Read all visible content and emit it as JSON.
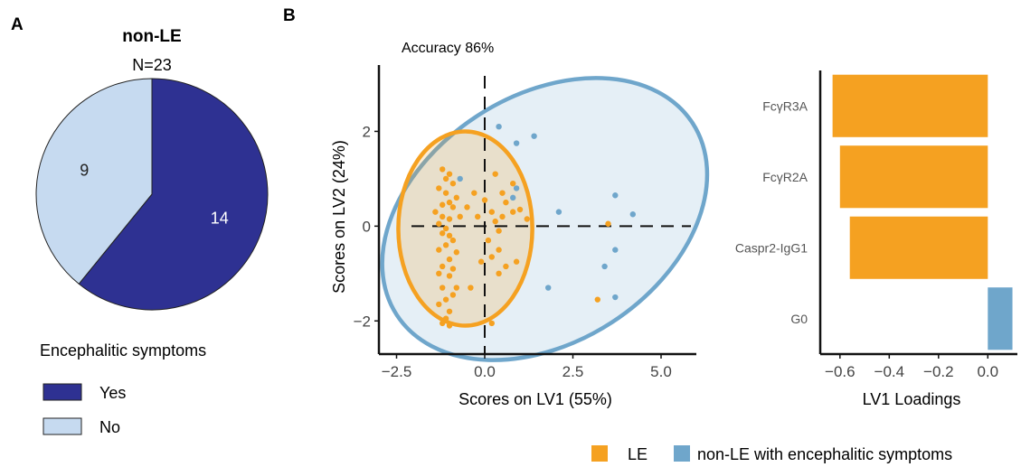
{
  "panels": {
    "a_letter": "A",
    "b_letter": "B"
  },
  "chart_data": [
    {
      "type": "pie",
      "title": "non-LE",
      "subtitle": "N=23",
      "categories": [
        "Yes",
        "No"
      ],
      "values": [
        14,
        9
      ],
      "colors": [
        "#2e3192",
        "#c6daf0"
      ],
      "legend": {
        "title": "Encephalitic symptoms",
        "items": [
          "Yes",
          "No"
        ],
        "position": "bottom"
      }
    },
    {
      "type": "scatter",
      "annotation": "Accuracy 86%",
      "xlabel": "Scores on LV1 (55%)",
      "ylabel": "Scores on LV2 (24%)",
      "xlim": [
        -3.0,
        6.0
      ],
      "ylim": [
        -2.7,
        3.4
      ],
      "xticks": [
        -2.5,
        0.0,
        2.5,
        5.0
      ],
      "xtick_labels": [
        "−2.5",
        "0.0",
        "2.5",
        "5.0"
      ],
      "yticks": [
        -2,
        0,
        2
      ],
      "ytick_labels": [
        "−2",
        "0",
        "2"
      ],
      "grid": false,
      "reference_lines": {
        "x": 0,
        "y": 0,
        "style": "dashed"
      },
      "series": [
        {
          "name": "LE",
          "color": "#f5a121",
          "ellipse": {
            "center": [
              -0.55,
              -0.05
            ],
            "rx": 1.9,
            "ry": 2.05,
            "angle": 0
          },
          "points": [
            [
              -1.2,
              1.2
            ],
            [
              -1.0,
              1.1
            ],
            [
              -1.1,
              1.0
            ],
            [
              -0.9,
              0.9
            ],
            [
              -1.3,
              0.8
            ],
            [
              -1.1,
              0.7
            ],
            [
              -0.8,
              0.6
            ],
            [
              -1.0,
              0.5
            ],
            [
              -1.2,
              0.45
            ],
            [
              -0.9,
              0.4
            ],
            [
              -1.4,
              0.3
            ],
            [
              -1.2,
              0.2
            ],
            [
              -1.0,
              0.15
            ],
            [
              -0.7,
              0.2
            ],
            [
              -1.3,
              0.05
            ],
            [
              -1.1,
              -0.05
            ],
            [
              -1.2,
              -0.15
            ],
            [
              -1.0,
              -0.2
            ],
            [
              -0.9,
              -0.3
            ],
            [
              -1.1,
              -0.4
            ],
            [
              -1.3,
              -0.5
            ],
            [
              -0.8,
              -0.55
            ],
            [
              -1.0,
              -0.7
            ],
            [
              -1.2,
              -0.85
            ],
            [
              -0.9,
              -0.9
            ],
            [
              -1.3,
              -1.0
            ],
            [
              -1.0,
              -1.05
            ],
            [
              -1.2,
              -1.3
            ],
            [
              -0.8,
              -1.3
            ],
            [
              -1.1,
              -1.55
            ],
            [
              -1.3,
              -1.65
            ],
            [
              -1.0,
              -1.8
            ],
            [
              -1.2,
              -2.05
            ],
            [
              -1.0,
              -2.1
            ],
            [
              -1.1,
              -1.95
            ],
            [
              -0.9,
              -1.45
            ],
            [
              -0.3,
              0.7
            ],
            [
              0.0,
              0.55
            ],
            [
              0.3,
              1.1
            ],
            [
              0.5,
              0.7
            ],
            [
              0.6,
              0.5
            ],
            [
              0.8,
              0.9
            ],
            [
              0.2,
              0.3
            ],
            [
              0.5,
              0.2
            ],
            [
              0.8,
              0.3
            ],
            [
              1.0,
              0.35
            ],
            [
              0.3,
              0.1
            ],
            [
              1.2,
              0.15
            ],
            [
              0.4,
              -0.1
            ],
            [
              -0.2,
              0.2
            ],
            [
              -0.5,
              0.4
            ],
            [
              0.1,
              -0.3
            ],
            [
              0.4,
              -0.5
            ],
            [
              0.6,
              -0.85
            ],
            [
              0.9,
              -0.75
            ],
            [
              0.2,
              -0.65
            ],
            [
              -0.1,
              -0.75
            ],
            [
              0.4,
              -1.0
            ],
            [
              -0.4,
              -1.3
            ],
            [
              0.2,
              -2.05
            ],
            [
              3.5,
              0.05
            ],
            [
              3.2,
              -1.55
            ]
          ]
        },
        {
          "name": "non-LE with encephalitic symptoms",
          "color": "#6fa6cb",
          "ellipse": {
            "center": [
              1.7,
              0.15
            ],
            "rx": 5.0,
            "ry": 2.6,
            "angle": -33
          },
          "points": [
            [
              0.4,
              2.1
            ],
            [
              0.9,
              1.75
            ],
            [
              1.4,
              1.9
            ],
            [
              0.9,
              0.8
            ],
            [
              0.8,
              0.6
            ],
            [
              -0.7,
              1.0
            ],
            [
              2.1,
              0.3
            ],
            [
              3.7,
              0.65
            ],
            [
              4.2,
              0.25
            ],
            [
              3.7,
              -0.5
            ],
            [
              3.4,
              -0.85
            ],
            [
              1.8,
              -1.3
            ],
            [
              3.7,
              -1.5
            ]
          ]
        }
      ]
    },
    {
      "type": "bar",
      "orientation": "horizontal",
      "categories": [
        "FcγR3A",
        "FcγR2A",
        "Caspr2-IgG1",
        "G0"
      ],
      "values": [
        -0.63,
        -0.6,
        -0.56,
        0.1
      ],
      "colors": [
        "#f5a121",
        "#f5a121",
        "#f5a121",
        "#6fa6cb"
      ],
      "xlabel": "LV1 Loadings",
      "xlim": [
        -0.68,
        0.12
      ],
      "xticks": [
        -0.6,
        -0.4,
        -0.2,
        0.0
      ],
      "xtick_labels": [
        "−0.6",
        "−0.4",
        "−0.2",
        "0.0"
      ],
      "grid": false
    }
  ],
  "legend": {
    "items": [
      {
        "label": "LE",
        "color": "#f5a121"
      },
      {
        "label": "non-LE with encephalitic symptoms",
        "color": "#6fa6cb"
      }
    ],
    "position": "bottom-right"
  }
}
